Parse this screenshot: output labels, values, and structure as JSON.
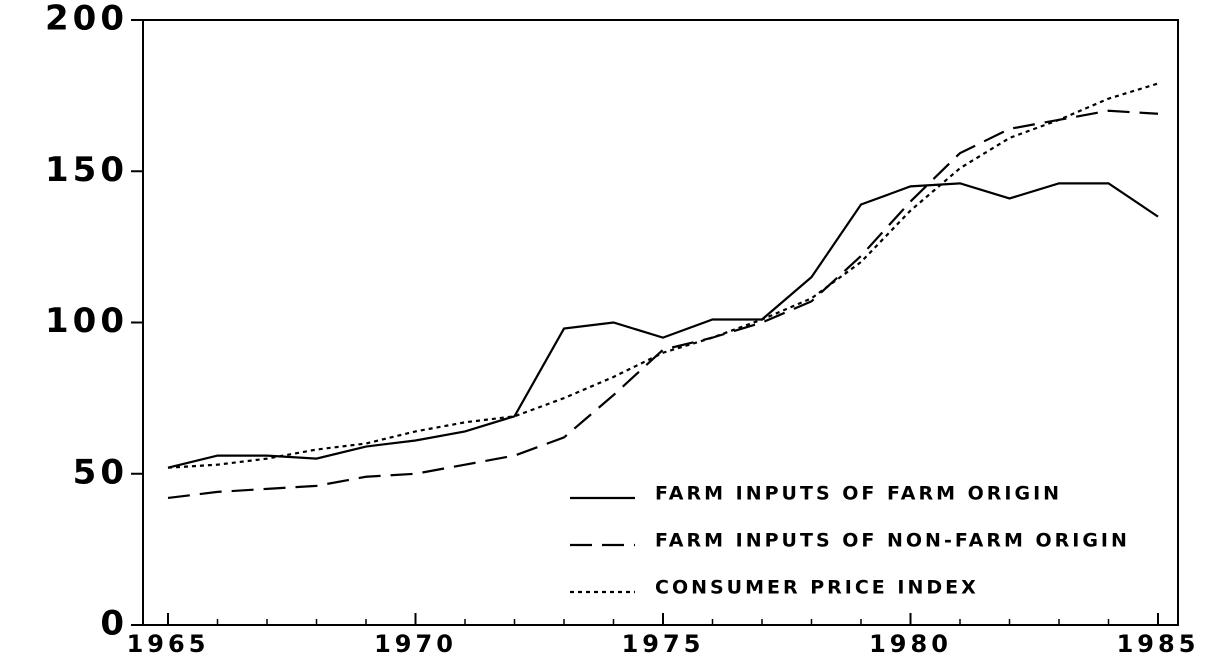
{
  "chart_data": {
    "type": "line",
    "x": [
      1965,
      1966,
      1967,
      1968,
      1969,
      1970,
      1971,
      1972,
      1973,
      1974,
      1975,
      1976,
      1977,
      1978,
      1979,
      1980,
      1981,
      1982,
      1983,
      1984,
      1985
    ],
    "series": [
      {
        "name": "FARM INPUTS OF FARM ORIGIN",
        "color": "#000000",
        "dash": "solid",
        "values": [
          52,
          56,
          56,
          55,
          59,
          61,
          64,
          69,
          98,
          100,
          95,
          101,
          101,
          115,
          139,
          145,
          146,
          141,
          146,
          146,
          135
        ]
      },
      {
        "name": "FARM INPUTS OF NON-FARM ORIGIN",
        "color": "#000000",
        "dash": "dashed",
        "values": [
          42,
          44,
          45,
          46,
          49,
          50,
          53,
          56,
          62,
          76,
          91,
          95,
          100,
          107,
          122,
          140,
          156,
          164,
          167,
          170,
          169
        ]
      },
      {
        "name": "CONSUMER PRICE INDEX",
        "color": "#000000",
        "dash": "dotted",
        "values": [
          52,
          53,
          55,
          58,
          60,
          64,
          67,
          69,
          75,
          82,
          90,
          95,
          101,
          108,
          120,
          137,
          151,
          161,
          167,
          174,
          179
        ]
      }
    ],
    "xlim": [
      1965,
      1985
    ],
    "xticks": [
      1965,
      1970,
      1975,
      1980,
      1985
    ],
    "ylim": [
      0,
      200
    ],
    "yticks": [
      0,
      50,
      100,
      150,
      200
    ],
    "grid": false,
    "legend": "lower right"
  }
}
